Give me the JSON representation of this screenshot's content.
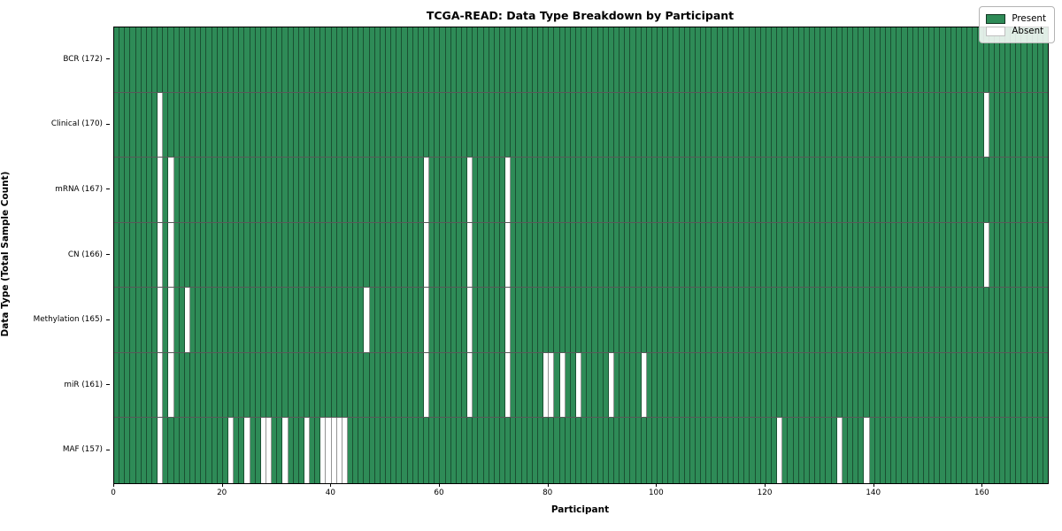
{
  "title": "TCGA-READ: Data Type Breakdown by Participant",
  "xlabel": "Participant",
  "ylabel": "Data Type (Total Sample Count)",
  "legend": {
    "present_label": "Present",
    "absent_label": "Absent"
  },
  "colors": {
    "present": "#2e8b57",
    "absent": "#ffffff",
    "cell_edge": "rgba(0,0,0,0.42)",
    "row_divider": "rgba(0,0,0,0.65)",
    "axis": "#000000"
  },
  "chart_data": {
    "type": "heatmap",
    "n_participants": 172,
    "x_axis_range": [
      0,
      172
    ],
    "x_ticks": [
      0,
      20,
      40,
      60,
      80,
      100,
      120,
      140,
      160
    ],
    "grid": "per-participant vertical cell edges, horizontal row dividers",
    "legend_position": "upper right",
    "cell_states": [
      "Present",
      "Absent"
    ],
    "rows": [
      {
        "label": "BCR (172)",
        "data_type": "BCR",
        "total_sample_count": 172,
        "absent_participants": []
      },
      {
        "label": "Clinical (170)",
        "data_type": "Clinical",
        "total_sample_count": 170,
        "absent_participants": [
          8,
          160
        ]
      },
      {
        "label": "mRNA (167)",
        "data_type": "mRNA",
        "total_sample_count": 167,
        "absent_participants": [
          8,
          10,
          57,
          65,
          72
        ]
      },
      {
        "label": "CN (166)",
        "data_type": "CN",
        "total_sample_count": 166,
        "absent_participants": [
          8,
          10,
          57,
          65,
          72,
          160
        ]
      },
      {
        "label": "Methylation (165)",
        "data_type": "Methylation",
        "total_sample_count": 165,
        "absent_participants": [
          8,
          10,
          13,
          46,
          57,
          65,
          72
        ]
      },
      {
        "label": "miR (161)",
        "data_type": "miR",
        "total_sample_count": 161,
        "absent_participants": [
          8,
          10,
          57,
          65,
          72,
          79,
          80,
          82,
          85,
          91,
          97
        ]
      },
      {
        "label": "MAF (157)",
        "data_type": "MAF",
        "total_sample_count": 157,
        "absent_participants": [
          8,
          21,
          24,
          27,
          28,
          31,
          35,
          38,
          39,
          40,
          41,
          42,
          122,
          133,
          138
        ]
      }
    ]
  }
}
